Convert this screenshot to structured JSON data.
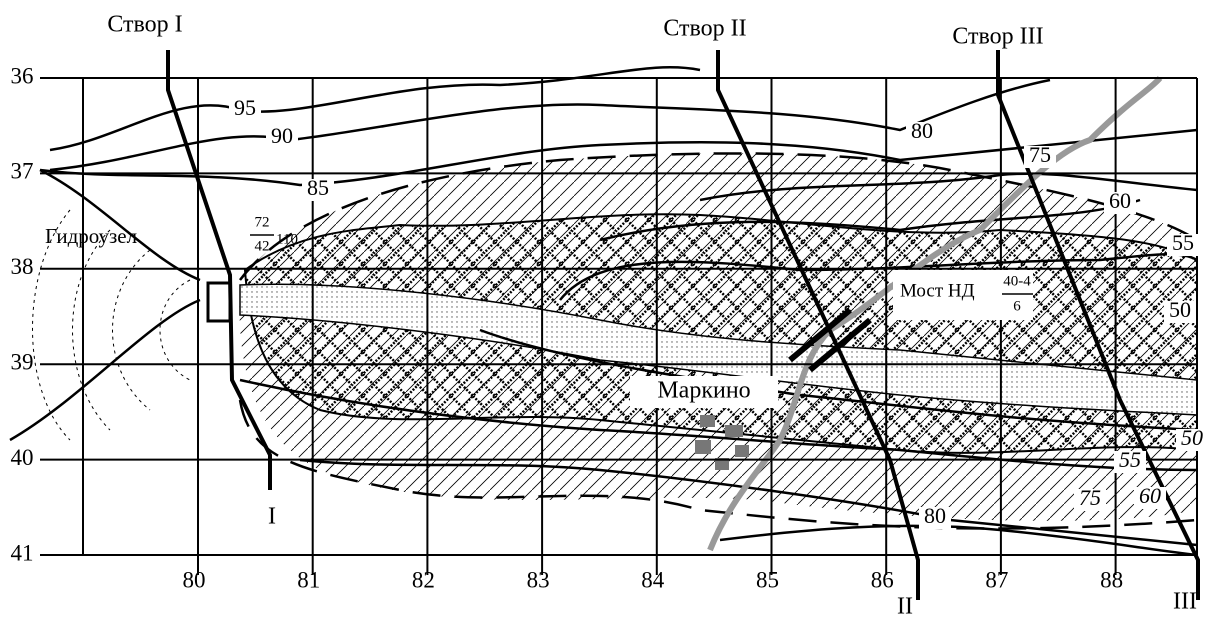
{
  "sections": [
    {
      "top_label": "Створ I",
      "bottom_label": "I"
    },
    {
      "top_label": "Створ II",
      "bottom_label": "II"
    },
    {
      "top_label": "Створ III",
      "bottom_label": "III"
    }
  ],
  "grid": {
    "rows": [
      36,
      37,
      38,
      39,
      40,
      41
    ],
    "columns": [
      80,
      81,
      82,
      83,
      84,
      85,
      86,
      87,
      88
    ]
  },
  "contour_labels": [
    95,
    90,
    85,
    80,
    75,
    60,
    55,
    50,
    50,
    55,
    75,
    60,
    80
  ],
  "dam": {
    "label": "Гидроузел",
    "numerator": 72,
    "denominator": 42,
    "suffix": 110
  },
  "bridge": {
    "label": "Мост НД",
    "numerator": "40-4",
    "denominator": 6
  },
  "settlement": {
    "label": "Маркино"
  }
}
